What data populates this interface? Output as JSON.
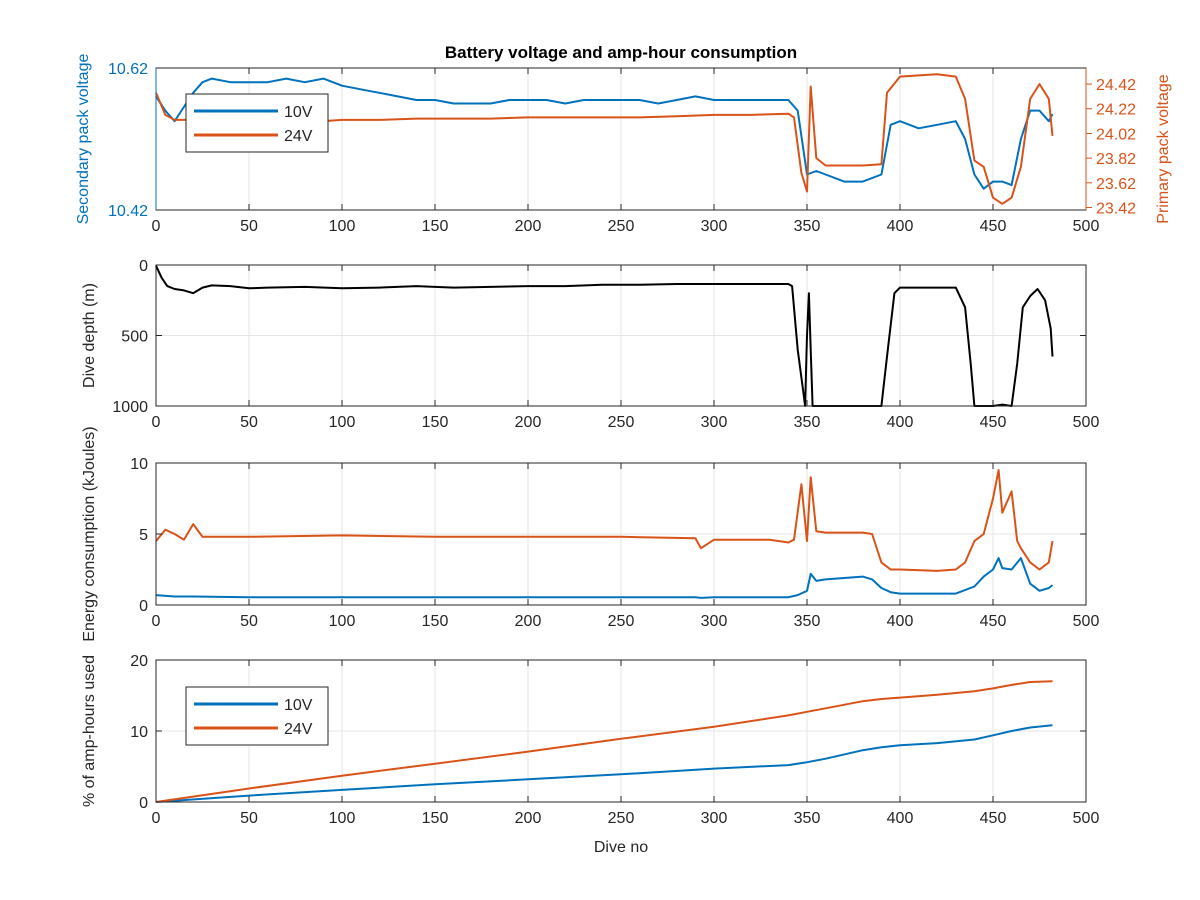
{
  "colors": {
    "blue": "#0072BD",
    "orange": "#D95319",
    "black": "#000000",
    "grid": "#e6e6e6",
    "axis": "#262626"
  },
  "chart_data": [
    {
      "type": "line",
      "title": "Battery voltage and amp-hour consumption",
      "xlabel": "",
      "ylabel_left": "Secondary pack voltage",
      "ylabel_right": "Primary pack voltage",
      "xlim": [
        0,
        500
      ],
      "ylim_left": [
        10.42,
        10.62
      ],
      "ylim_right": [
        23.4,
        24.55
      ],
      "xticks": [
        0,
        50,
        100,
        150,
        200,
        250,
        300,
        350,
        400,
        450,
        500
      ],
      "yticks_left": [
        10.42,
        10.62
      ],
      "ytick_labels_left": [
        "10.42",
        "10.62"
      ],
      "yticks_right": [
        23.42,
        23.62,
        23.82,
        24.02,
        24.22,
        24.42
      ],
      "ytick_labels_right": [
        "23.42",
        "23.62",
        "23.82",
        "24.02",
        "24.22",
        "24.42"
      ],
      "grid": true,
      "legend": {
        "position": "top-left",
        "entries": [
          "10V",
          "24V"
        ]
      },
      "series": [
        {
          "name": "10V",
          "axis": "left",
          "color": "#0072BD",
          "x": [
            0,
            5,
            10,
            15,
            20,
            25,
            30,
            40,
            50,
            60,
            70,
            80,
            90,
            100,
            110,
            120,
            130,
            140,
            150,
            160,
            170,
            180,
            190,
            200,
            210,
            220,
            230,
            240,
            250,
            260,
            270,
            280,
            290,
            300,
            310,
            320,
            330,
            340,
            345,
            350,
            355,
            360,
            370,
            380,
            390,
            395,
            400,
            410,
            420,
            430,
            435,
            440,
            445,
            450,
            455,
            460,
            465,
            470,
            475,
            480,
            482
          ],
          "y": [
            10.58,
            10.56,
            10.545,
            10.565,
            10.585,
            10.6,
            10.605,
            10.6,
            10.6,
            10.6,
            10.605,
            10.6,
            10.605,
            10.595,
            10.59,
            10.585,
            10.58,
            10.575,
            10.575,
            10.57,
            10.57,
            10.57,
            10.575,
            10.575,
            10.575,
            10.57,
            10.575,
            10.575,
            10.575,
            10.575,
            10.57,
            10.575,
            10.58,
            10.575,
            10.575,
            10.575,
            10.575,
            10.575,
            10.56,
            10.47,
            10.475,
            10.47,
            10.46,
            10.46,
            10.47,
            10.54,
            10.545,
            10.535,
            10.54,
            10.545,
            10.52,
            10.47,
            10.45,
            10.46,
            10.46,
            10.455,
            10.52,
            10.56,
            10.56,
            10.545,
            10.555
          ]
        },
        {
          "name": "24V",
          "axis": "right",
          "color": "#D95319",
          "x": [
            0,
            5,
            10,
            20,
            30,
            40,
            50,
            60,
            70,
            80,
            90,
            100,
            120,
            140,
            160,
            180,
            200,
            220,
            240,
            260,
            280,
            300,
            320,
            340,
            343,
            347,
            350,
            352,
            355,
            360,
            370,
            380,
            390,
            393,
            400,
            410,
            420,
            430,
            435,
            440,
            445,
            450,
            455,
            460,
            465,
            470,
            475,
            480,
            482
          ],
          "y": [
            24.35,
            24.17,
            24.13,
            24.13,
            24.13,
            24.1,
            24.09,
            24.1,
            24.11,
            24.12,
            24.12,
            24.13,
            24.13,
            24.14,
            24.14,
            24.14,
            24.15,
            24.15,
            24.15,
            24.15,
            24.16,
            24.17,
            24.17,
            24.18,
            24.15,
            23.7,
            23.55,
            24.4,
            23.82,
            23.76,
            23.76,
            23.76,
            23.77,
            24.35,
            24.48,
            24.49,
            24.5,
            24.48,
            24.3,
            23.8,
            23.75,
            23.5,
            23.45,
            23.5,
            23.75,
            24.3,
            24.42,
            24.3,
            24.0
          ]
        }
      ]
    },
    {
      "type": "line",
      "title": "",
      "xlabel": "",
      "ylabel": "Dive depth (m)",
      "xlim": [
        0,
        500
      ],
      "ylim": [
        0,
        1000
      ],
      "reversed_y": true,
      "xticks": [
        0,
        50,
        100,
        150,
        200,
        250,
        300,
        350,
        400,
        450,
        500
      ],
      "yticks": [
        0,
        500,
        1000
      ],
      "ytick_labels": [
        "0",
        "500",
        "1000"
      ],
      "grid": true,
      "series": [
        {
          "name": "",
          "color": "#000000",
          "x": [
            0,
            3,
            6,
            10,
            15,
            20,
            25,
            30,
            40,
            50,
            60,
            80,
            100,
            120,
            140,
            160,
            180,
            200,
            220,
            240,
            260,
            280,
            300,
            320,
            340,
            342,
            345,
            348,
            349,
            350,
            351,
            352,
            353,
            360,
            380,
            390,
            393,
            397,
            400,
            410,
            420,
            430,
            435,
            438,
            440,
            450,
            455,
            460,
            463,
            466,
            470,
            474,
            478,
            481,
            482
          ],
          "y": [
            5,
            90,
            150,
            170,
            180,
            200,
            160,
            145,
            150,
            165,
            160,
            155,
            165,
            160,
            150,
            160,
            155,
            150,
            150,
            140,
            140,
            135,
            135,
            135,
            135,
            150,
            600,
            900,
            1000,
            500,
            200,
            600,
            1000,
            1000,
            1000,
            1000,
            650,
            200,
            160,
            160,
            160,
            160,
            300,
            700,
            1000,
            1000,
            990,
            1000,
            700,
            300,
            220,
            170,
            250,
            450,
            650
          ]
        }
      ]
    },
    {
      "type": "line",
      "title": "",
      "xlabel": "",
      "ylabel": "Energy consumption (kJoules)",
      "xlim": [
        0,
        500
      ],
      "ylim": [
        0,
        10
      ],
      "xticks": [
        0,
        50,
        100,
        150,
        200,
        250,
        300,
        350,
        400,
        450,
        500
      ],
      "yticks": [
        0,
        5,
        10
      ],
      "ytick_labels": [
        "0",
        "5",
        "10"
      ],
      "grid": true,
      "series": [
        {
          "name": "24V",
          "color": "#D95319",
          "x": [
            0,
            5,
            10,
            15,
            20,
            25,
            50,
            100,
            150,
            200,
            250,
            290,
            293,
            300,
            310,
            320,
            330,
            340,
            343,
            347,
            350,
            352,
            355,
            360,
            380,
            385,
            390,
            395,
            400,
            420,
            430,
            435,
            440,
            445,
            450,
            453,
            455,
            460,
            463,
            465,
            470,
            475,
            480,
            482
          ],
          "y": [
            4.5,
            5.3,
            5.0,
            4.6,
            5.7,
            4.8,
            4.8,
            4.9,
            4.8,
            4.8,
            4.8,
            4.7,
            4.0,
            4.6,
            4.6,
            4.6,
            4.6,
            4.4,
            4.6,
            8.5,
            4.5,
            9.0,
            5.2,
            5.1,
            5.1,
            5.0,
            3.0,
            2.5,
            2.5,
            2.4,
            2.5,
            3.0,
            4.5,
            5.0,
            7.5,
            9.5,
            6.5,
            8.0,
            4.5,
            4.0,
            3.0,
            2.5,
            3.0,
            4.5
          ]
        },
        {
          "name": "10V",
          "color": "#0072BD",
          "x": [
            0,
            10,
            20,
            50,
            100,
            150,
            200,
            250,
            290,
            293,
            300,
            340,
            345,
            350,
            352,
            355,
            360,
            380,
            385,
            390,
            395,
            400,
            430,
            440,
            445,
            450,
            453,
            455,
            460,
            465,
            470,
            475,
            480,
            482
          ],
          "y": [
            0.7,
            0.6,
            0.6,
            0.55,
            0.55,
            0.55,
            0.55,
            0.55,
            0.55,
            0.5,
            0.55,
            0.55,
            0.7,
            1.0,
            2.2,
            1.7,
            1.8,
            2.0,
            1.8,
            1.2,
            0.9,
            0.8,
            0.8,
            1.3,
            2.0,
            2.5,
            3.3,
            2.6,
            2.5,
            3.3,
            1.5,
            1.0,
            1.2,
            1.4
          ]
        }
      ]
    },
    {
      "type": "line",
      "title": "",
      "xlabel": "Dive no",
      "ylabel": "% of amp-hours used",
      "xlim": [
        0,
        500
      ],
      "ylim": [
        0,
        20
      ],
      "xticks": [
        0,
        50,
        100,
        150,
        200,
        250,
        300,
        350,
        400,
        450,
        500
      ],
      "yticks": [
        0,
        10,
        20
      ],
      "ytick_labels": [
        "0",
        "10",
        "20"
      ],
      "grid": true,
      "legend": {
        "position": "top-left",
        "entries": [
          "10V",
          "24V"
        ]
      },
      "series": [
        {
          "name": "10V",
          "color": "#0072BD",
          "x": [
            0,
            50,
            100,
            150,
            200,
            250,
            300,
            340,
            350,
            360,
            380,
            390,
            400,
            420,
            440,
            450,
            460,
            470,
            482
          ],
          "y": [
            0,
            0.9,
            1.7,
            2.5,
            3.2,
            3.9,
            4.7,
            5.2,
            5.6,
            6.1,
            7.3,
            7.7,
            8.0,
            8.3,
            8.8,
            9.4,
            10.0,
            10.5,
            10.8
          ]
        },
        {
          "name": "24V",
          "color": "#D95319",
          "x": [
            0,
            50,
            100,
            150,
            200,
            250,
            300,
            340,
            350,
            360,
            380,
            390,
            400,
            420,
            440,
            450,
            460,
            470,
            482
          ],
          "y": [
            0,
            1.9,
            3.7,
            5.4,
            7.1,
            8.9,
            10.6,
            12.2,
            12.7,
            13.2,
            14.2,
            14.5,
            14.7,
            15.1,
            15.6,
            16.0,
            16.5,
            16.9,
            17.0
          ]
        }
      ]
    }
  ]
}
